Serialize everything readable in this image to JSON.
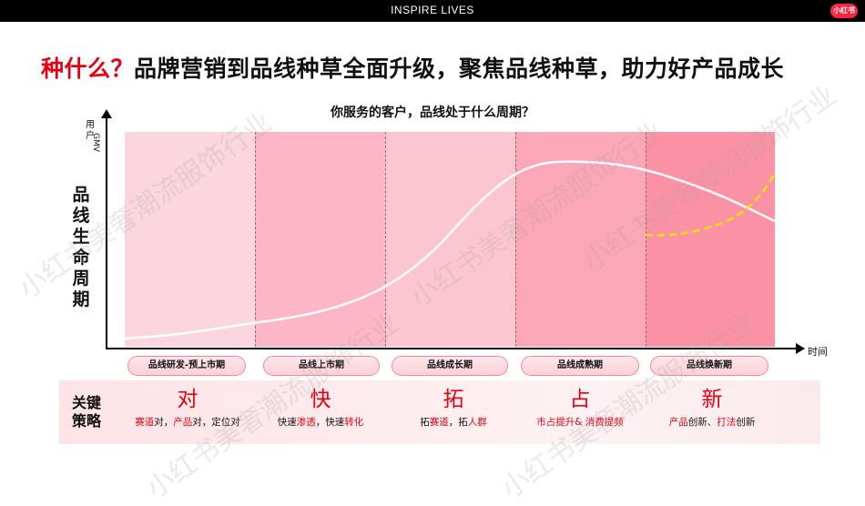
{
  "header": {
    "title": "INSPIRE LIVES",
    "logo_text": "小红书"
  },
  "headline": {
    "accent": "种什么？",
    "rest": "品牌营销到品线种草全面升级，聚焦品线种草，助力好产品成长"
  },
  "subtitle": "你服务的客户，品线处于什么周期？",
  "axes": {
    "y_label_1": "用户",
    "y_label_2": "GMV",
    "x_label": "时间"
  },
  "y_title": "品线生命周期",
  "stages": [
    "品线研发-预上市期",
    "品线上市期",
    "品线成长期",
    "品线成熟期",
    "品线焕新期"
  ],
  "strategy_title": "关键策略",
  "strategies": [
    {
      "char": "对",
      "parts": [
        {
          "t": "赛道",
          "hl": true
        },
        {
          "t": "对，",
          "hl": false
        },
        {
          "t": "产品",
          "hl": true
        },
        {
          "t": "对，定位对",
          "hl": false
        }
      ]
    },
    {
      "char": "快",
      "parts": [
        {
          "t": "快速",
          "hl": false
        },
        {
          "t": "渗透",
          "hl": true
        },
        {
          "t": "，快速",
          "hl": false
        },
        {
          "t": "转化",
          "hl": true
        }
      ]
    },
    {
      "char": "拓",
      "parts": [
        {
          "t": "拓",
          "hl": false
        },
        {
          "t": "赛道",
          "hl": true
        },
        {
          "t": "，拓",
          "hl": false
        },
        {
          "t": "人群",
          "hl": true
        }
      ]
    },
    {
      "char": "占",
      "parts": [
        {
          "t": "市占提升& 消费提频",
          "hl": true
        }
      ]
    },
    {
      "char": "新",
      "parts": [
        {
          "t": "产品",
          "hl": true
        },
        {
          "t": "创新、",
          "hl": false
        },
        {
          "t": "打法",
          "hl": true
        },
        {
          "t": "创新",
          "hl": false
        }
      ]
    }
  ],
  "watermark": "小红书美奢潮流服饰行业",
  "colors": {
    "accent": "#e60012",
    "zone_1": "#fbd6de",
    "zone_2": "#fdb6c5",
    "zone_3": "#fcc6d1",
    "zone_4": "#fca7b7",
    "zone_5": "#fb91a4",
    "white_curve": "#ffffff",
    "yellow_curve": "#ffe600"
  }
}
